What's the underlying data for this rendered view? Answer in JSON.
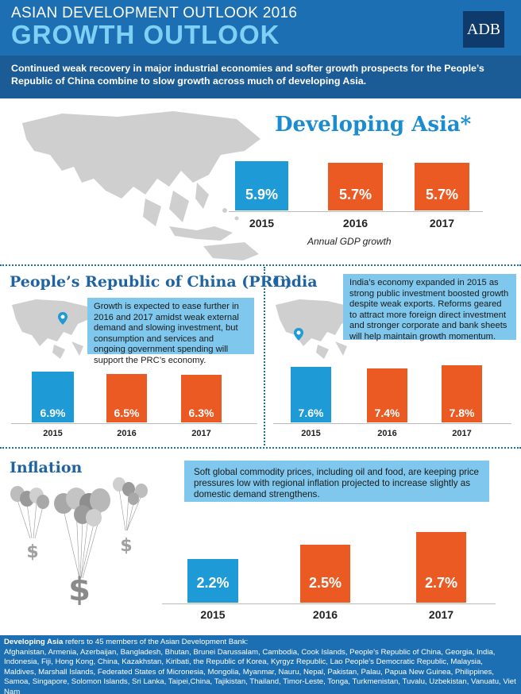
{
  "header": {
    "pre_title": "ASIAN DEVELOPMENT OUTLOOK 2016",
    "main_title": "GROWTH OUTLOOK",
    "logo": "ADB"
  },
  "intro": "Continued weak recovery in major industrial economies and softer growth prospects for the People’s Republic of China combine to slow growth across much of developing Asia.",
  "developing_asia": {
    "title": "Developing Asia*",
    "caption": "Annual GDP growth",
    "years": [
      "2015",
      "2016",
      "2017"
    ],
    "values": [
      "5.9%",
      "5.7%",
      "5.7%"
    ]
  },
  "prc": {
    "title": "People’s Republic of China (PRC)",
    "note": "Growth is expected to ease further in 2016 and 2017 amidst weak external demand and slowing investment, but consumption and services and ongoing government spending will support the PRC’s economy.",
    "years": [
      "2015",
      "2016",
      "2017"
    ],
    "values": [
      "6.9%",
      "6.5%",
      "6.3%"
    ]
  },
  "india": {
    "title": "India",
    "note": "India’s economy expanded in 2015 as strong public investment boosted growth despite weak exports. Reforms geared to attract more foreign direct investment and stronger corporate and bank sheets will help maintain growth momentum.",
    "years": [
      "2015",
      "2016",
      "2017"
    ],
    "values": [
      "7.6%",
      "7.4%",
      "7.8%"
    ]
  },
  "inflation": {
    "title": "Inflation",
    "note": "Soft global commodity prices, including oil and food, are keeping price pressures low with regional inflation projected to increase slightly as domestic demand strengthens.",
    "years": [
      "2015",
      "2016",
      "2017"
    ],
    "values": [
      "2.2%",
      "2.5%",
      "2.7%"
    ]
  },
  "footer": {
    "lead": "Developing Asia",
    "lead_rest": " refers to 45 members of the Asian Development Bank:",
    "countries": "Afghanistan, Armenia, Azerbaijan, Bangladesh, Bhutan, Brunei Darussalam, Cambodia, Cook Islands, People’s Republic of China, Georgia, India, Indonesia, Fiji, Hong Kong, China, Kazakhstan, Kiribati, the Republic of Korea, Kyrgyz Republic, Lao People’s Democratic Republic, Malaysia, Maldives, Marshall Islands, Federated States of Micronesia, Mongolia, Myanmar, Nauru, Nepal, Pakistan, Palau, Papua New Guinea, Philippines, Samoa, Singapore, Solomon Islands, Sri Lanka, Taipei,China, Tajikistan, Thailand, Timor-Leste, Tonga, Turkmenistan, Tuvalu, Uzbekistan, Vanuatu, Viet Nam"
  },
  "colors": {
    "header_blue": "#1d6fb3",
    "intro_blue": "#1c5c96",
    "bar_blue": "#1e9ad6",
    "bar_orange": "#ec5a24",
    "title_blue": "#1a8ccf",
    "note_blue": "#7fc7ec"
  }
}
